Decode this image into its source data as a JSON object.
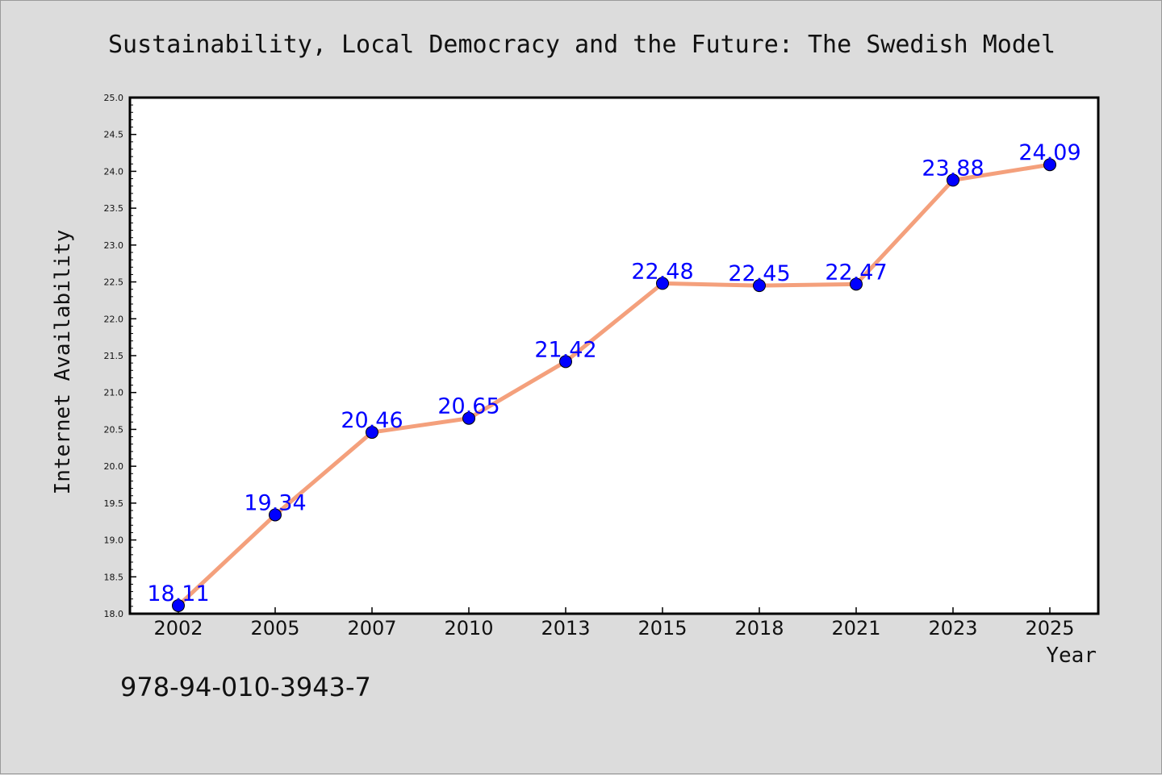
{
  "footer": {
    "isbn": "978-94-010-3943-7"
  },
  "chart_data": {
    "type": "line",
    "title": "Sustainability, Local Democracy and the Future: The Swedish Model",
    "xlabel": "Year",
    "ylabel": "Internet Availability",
    "categories": [
      "2002",
      "2005",
      "2007",
      "2010",
      "2013",
      "2015",
      "2018",
      "2021",
      "2023",
      "2025"
    ],
    "values": [
      18.11,
      19.34,
      20.46,
      20.65,
      21.42,
      22.48,
      22.45,
      22.47,
      23.88,
      24.09
    ],
    "value_labels": [
      "18.11",
      "19.34",
      "20.46",
      "20.65",
      "21.42",
      "22.48",
      "22.45",
      "22.47",
      "23.88",
      "24.09"
    ],
    "ylim": [
      18.0,
      25.0
    ],
    "yticks": [
      "18.0",
      "18.5",
      "19.0",
      "19.5",
      "20.0",
      "20.5",
      "21.0",
      "21.5",
      "22.0",
      "22.5",
      "23.0",
      "23.5",
      "24.0",
      "24.5",
      "25.0"
    ],
    "grid": false,
    "legend": "none",
    "colors": {
      "line": "#f4a07c",
      "marker": "#0000ff",
      "label": "#0000ff",
      "background": "#dcdcdc",
      "plot_background": "#ffffff"
    }
  }
}
